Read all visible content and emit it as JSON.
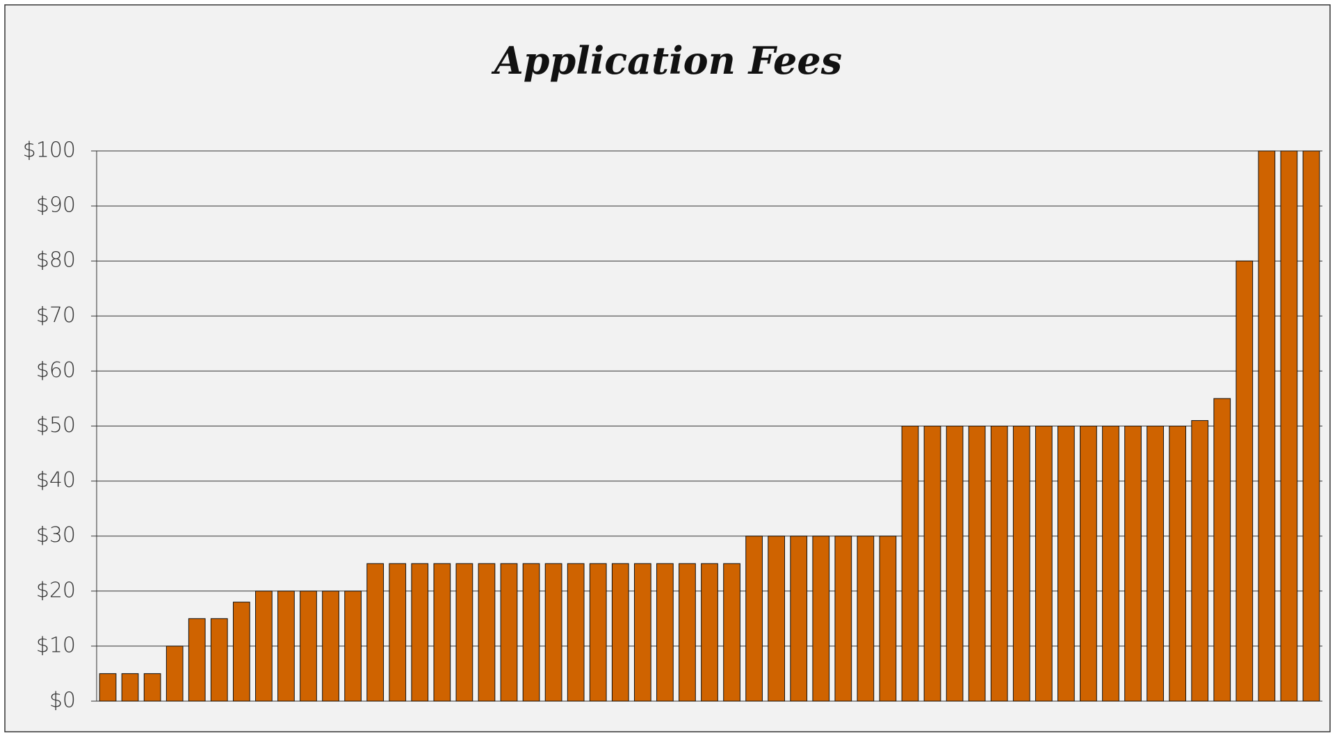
{
  "chart_data": {
    "type": "bar",
    "title": "Application Fees",
    "categories": [
      null,
      null,
      null,
      null,
      null,
      null,
      null,
      null,
      null,
      null,
      null,
      null,
      null,
      null,
      null,
      null,
      null,
      null,
      null,
      null,
      null,
      null,
      null,
      null,
      null,
      null,
      null,
      null,
      null,
      null,
      null,
      null,
      null,
      null,
      null,
      null,
      null,
      null,
      null,
      null,
      null,
      null,
      null,
      null,
      null,
      null,
      null,
      null,
      null,
      null,
      null,
      null,
      null,
      null,
      null
    ],
    "values": [
      5,
      5,
      5,
      10,
      15,
      15,
      18,
      20,
      20,
      20,
      20,
      20,
      25,
      25,
      25,
      25,
      25,
      25,
      25,
      25,
      25,
      25,
      25,
      25,
      25,
      25,
      25,
      25,
      25,
      30,
      30,
      30,
      30,
      30,
      30,
      30,
      50,
      50,
      50,
      50,
      50,
      50,
      50,
      50,
      50,
      50,
      50,
      50,
      50,
      51,
      55,
      80,
      100,
      100,
      100
    ],
    "color": "#cf6300",
    "ylim": [
      0,
      100
    ],
    "yticks": [
      {
        "value": 0,
        "label": "$0"
      },
      {
        "value": 10,
        "label": "$10"
      },
      {
        "value": 20,
        "label": "$20"
      },
      {
        "value": 30,
        "label": "$30"
      },
      {
        "value": 40,
        "label": "$40"
      },
      {
        "value": 50,
        "label": "$50"
      },
      {
        "value": 60,
        "label": "$60"
      },
      {
        "value": 70,
        "label": "$70"
      },
      {
        "value": 80,
        "label": "$80"
      },
      {
        "value": 90,
        "label": "$90"
      },
      {
        "value": 100,
        "label": "$100"
      }
    ],
    "grid": true
  }
}
